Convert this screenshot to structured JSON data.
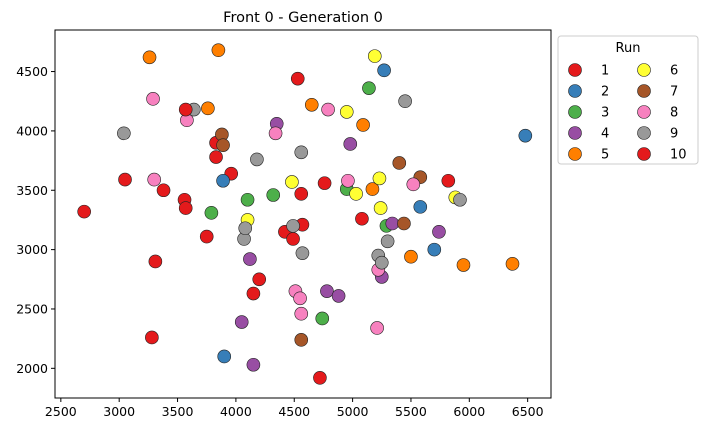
{
  "chart_data": {
    "type": "scatter",
    "title": "Front 0 -  Generation 0",
    "xlabel": "",
    "ylabel": "",
    "xlim": [
      2450,
      6700
    ],
    "ylim": [
      1750,
      4850
    ],
    "xticks": [
      2500,
      3000,
      3500,
      4000,
      4500,
      5000,
      5500,
      6000,
      6500
    ],
    "yticks": [
      2000,
      2500,
      3000,
      3500,
      4000,
      4500
    ],
    "grid": false,
    "legend": {
      "title": "Run",
      "placement": "outside-right",
      "columns": 2
    },
    "series": [
      {
        "name": "1",
        "color": "#e41a1c",
        "points": [
          [
            3050,
            3590
          ],
          [
            3560,
            3420
          ],
          [
            3380,
            3500
          ],
          [
            3570,
            3350
          ],
          [
            3830,
            3780
          ],
          [
            3830,
            3900
          ],
          [
            3960,
            3640
          ],
          [
            3750,
            3110
          ],
          [
            4200,
            2750
          ],
          [
            4150,
            2630
          ],
          [
            3310,
            2900
          ],
          [
            3280,
            2260
          ],
          [
            4420,
            3150
          ],
          [
            4490,
            3090
          ],
          [
            4560,
            3470
          ],
          [
            4570,
            3210
          ],
          [
            4530,
            4440
          ],
          [
            4760,
            3560
          ],
          [
            5080,
            3260
          ],
          [
            5820,
            3580
          ]
        ]
      },
      {
        "name": "2",
        "color": "#377eb8",
        "points": [
          [
            3890,
            3580
          ],
          [
            3900,
            2100
          ],
          [
            5270,
            4510
          ],
          [
            5580,
            3360
          ],
          [
            5700,
            3000
          ],
          [
            6480,
            3960
          ]
        ]
      },
      {
        "name": "3",
        "color": "#4daf4a",
        "points": [
          [
            3790,
            3310
          ],
          [
            4100,
            3420
          ],
          [
            4320,
            3460
          ],
          [
            4740,
            2420
          ],
          [
            4950,
            3510
          ],
          [
            5140,
            4360
          ],
          [
            5290,
            3200
          ]
        ]
      },
      {
        "name": "4",
        "color": "#984ea3",
        "points": [
          [
            4350,
            4060
          ],
          [
            4120,
            2920
          ],
          [
            4050,
            2390
          ],
          [
            4150,
            2030
          ],
          [
            4780,
            2650
          ],
          [
            4880,
            2610
          ],
          [
            4980,
            3890
          ],
          [
            5250,
            2770
          ],
          [
            5340,
            3220
          ],
          [
            5740,
            3150
          ]
        ]
      },
      {
        "name": "5",
        "color": "#ff7f00",
        "points": [
          [
            3260,
            4620
          ],
          [
            3850,
            4680
          ],
          [
            3760,
            4190
          ],
          [
            4650,
            4220
          ],
          [
            5090,
            4050
          ],
          [
            5170,
            3510
          ],
          [
            5500,
            2940
          ],
          [
            5950,
            2870
          ],
          [
            6370,
            2880
          ]
        ]
      },
      {
        "name": "6",
        "color": "#ffff33",
        "points": [
          [
            4100,
            3250
          ],
          [
            4480,
            3570
          ],
          [
            4950,
            4160
          ],
          [
            5030,
            3470
          ],
          [
            5190,
            4630
          ],
          [
            5230,
            3600
          ],
          [
            5240,
            3350
          ],
          [
            5880,
            3440
          ]
        ]
      },
      {
        "name": "7",
        "color": "#a65628",
        "points": [
          [
            3880,
            3970
          ],
          [
            3890,
            3880
          ],
          [
            4560,
            2240
          ],
          [
            5400,
            3730
          ],
          [
            5440,
            3220
          ],
          [
            5580,
            3610
          ]
        ]
      },
      {
        "name": "8",
        "color": "#f781bf",
        "points": [
          [
            3290,
            4270
          ],
          [
            3300,
            3590
          ],
          [
            3580,
            4090
          ],
          [
            4340,
            3980
          ],
          [
            4510,
            2650
          ],
          [
            4550,
            2590
          ],
          [
            4560,
            2460
          ],
          [
            4790,
            4180
          ],
          [
            4960,
            3580
          ],
          [
            5210,
            2340
          ],
          [
            5220,
            2830
          ],
          [
            5520,
            3550
          ]
        ]
      },
      {
        "name": "9",
        "color": "#999999",
        "points": [
          [
            3040,
            3980
          ],
          [
            3640,
            4180
          ],
          [
            4070,
            3090
          ],
          [
            4080,
            3180
          ],
          [
            4180,
            3760
          ],
          [
            4490,
            3200
          ],
          [
            4560,
            3820
          ],
          [
            4570,
            2970
          ],
          [
            5220,
            2950
          ],
          [
            5250,
            2890
          ],
          [
            5300,
            3070
          ],
          [
            5450,
            4250
          ],
          [
            5920,
            3420
          ]
        ]
      },
      {
        "name": "10",
        "color": "#e41a1c",
        "points": [
          [
            2700,
            3320
          ],
          [
            3570,
            4180
          ],
          [
            4720,
            1920
          ]
        ]
      }
    ]
  }
}
